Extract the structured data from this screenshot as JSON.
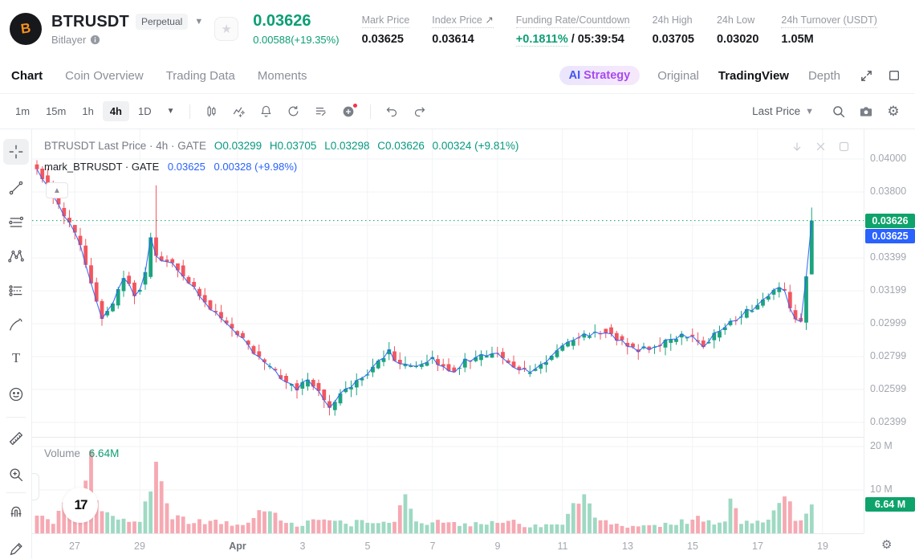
{
  "header": {
    "symbol": "BTRUSDT",
    "contract_badge": "Perpetual",
    "network": "Bitlayer",
    "price": "0.03626",
    "change": "0.00588(+19.35%)",
    "stats": [
      {
        "label": "Mark Price",
        "value": "0.03625"
      },
      {
        "label": "Index Price",
        "value": "0.03614"
      },
      {
        "label": "Funding Rate/Countdown",
        "rate": "+0.1811%",
        "countdown": " / 05:39:54"
      },
      {
        "label": "24h High",
        "value": "0.03705"
      },
      {
        "label": "24h Low",
        "value": "0.03020"
      },
      {
        "label": "24h Turnover (USDT)",
        "value": "1.05M"
      }
    ]
  },
  "nav": {
    "tabs": [
      "Chart",
      "Coin Overview",
      "Trading Data",
      "Moments"
    ],
    "active_tab": "Chart",
    "ai_badge": {
      "prefix": "AI",
      "label": "Strategy"
    },
    "views": [
      "Original",
      "TradingView",
      "Depth"
    ],
    "active_view": "TradingView"
  },
  "toolbar": {
    "timeframes": [
      "1m",
      "15m",
      "1h",
      "4h",
      "1D"
    ],
    "active_timeframe": "4h",
    "price_mode": "Last Price"
  },
  "legend": {
    "main_title": "BTRUSDT Last Price · 4h · GATE",
    "o": "O0.03299",
    "h": "H0.03705",
    "l": "L0.03298",
    "c": "C0.03626",
    "change": "0.00324 (+9.81%)",
    "mark_title": "mark_BTRUSDT · GATE",
    "mark_price": "0.03625",
    "mark_change": "0.00328 (+9.98%)",
    "volume_label": "Volume",
    "volume_value": "6.64M"
  },
  "axis_badges": {
    "last_price": "0.03626",
    "mark_price": "0.03625",
    "volume": "6.64 M"
  },
  "chart_data": {
    "type": "candlestick",
    "title": "BTRUSDT Last Price 4h GATE",
    "interval": "4h",
    "legend_position": "top-left",
    "grid": true,
    "last_candle": {
      "o": 0.03299,
      "h": 0.03705,
      "l": 0.03298,
      "c": 0.03626
    },
    "last_price": 0.03626,
    "mark_price": 0.03625,
    "last_volume_m": 6.64,
    "price_axis_range": [
      0.0222,
      0.0418
    ],
    "price_ticks": [
      {
        "label": "0.04000",
        "value": 0.04
      },
      {
        "label": "0.03800",
        "value": 0.038
      },
      {
        "label": "0.03399",
        "value": 0.03399
      },
      {
        "label": "0.03199",
        "value": 0.03199
      },
      {
        "label": "0.02999",
        "value": 0.02999
      },
      {
        "label": "0.02799",
        "value": 0.02799
      },
      {
        "label": "0.02599",
        "value": 0.02599
      },
      {
        "label": "0.02399",
        "value": 0.02399
      }
    ],
    "grid_prices": [
      0.04,
      0.038,
      0.03599,
      0.03399,
      0.03199,
      0.02999,
      0.02799,
      0.02599,
      0.02399
    ],
    "volume_ticks": [
      {
        "label": "20 M",
        "value": 20
      },
      {
        "label": "10 M",
        "value": 10
      }
    ],
    "x_ticks": [
      {
        "label": "27",
        "idx": 7
      },
      {
        "label": "29",
        "idx": 19
      },
      {
        "label": "Apr",
        "idx": 37,
        "bold": true
      },
      {
        "label": "3",
        "idx": 49
      },
      {
        "label": "5",
        "idx": 61
      },
      {
        "label": "7",
        "idx": 73
      },
      {
        "label": "9",
        "idx": 85
      },
      {
        "label": "11",
        "idx": 97
      },
      {
        "label": "13",
        "idx": 109
      },
      {
        "label": "15",
        "idx": 121
      },
      {
        "label": "17",
        "idx": 133
      },
      {
        "label": "19",
        "idx": 145
      }
    ],
    "candle_count": 144,
    "price_waypoints": [
      [
        0,
        0.0398
      ],
      [
        1,
        0.0394
      ],
      [
        2,
        0.0389
      ],
      [
        3,
        0.0383
      ],
      [
        4,
        0.0378
      ],
      [
        5,
        0.0372
      ],
      [
        6,
        0.0366
      ],
      [
        8,
        0.0355
      ],
      [
        9,
        0.0347
      ],
      [
        10,
        0.0336
      ],
      [
        11,
        0.0324
      ],
      [
        12,
        0.0312
      ],
      [
        13,
        0.0304
      ],
      [
        14,
        0.0307
      ],
      [
        15,
        0.0312
      ],
      [
        16,
        0.0321
      ],
      [
        17,
        0.0329
      ],
      [
        18,
        0.0324
      ],
      [
        19,
        0.0318
      ],
      [
        20,
        0.0322
      ],
      [
        21,
        0.033
      ],
      [
        22,
        0.0352
      ],
      [
        23,
        0.0341
      ],
      [
        25,
        0.0338
      ],
      [
        27,
        0.0334
      ],
      [
        29,
        0.0326
      ],
      [
        31,
        0.0316
      ],
      [
        33,
        0.0309
      ],
      [
        35,
        0.0303
      ],
      [
        37,
        0.0297
      ],
      [
        39,
        0.029
      ],
      [
        41,
        0.0282
      ],
      [
        43,
        0.0275
      ],
      [
        45,
        0.027
      ],
      [
        47,
        0.0264
      ],
      [
        49,
        0.0261
      ],
      [
        51,
        0.0266
      ],
      [
        53,
        0.0259
      ],
      [
        54,
        0.0253
      ],
      [
        55,
        0.0248
      ],
      [
        56,
        0.0252
      ],
      [
        57,
        0.0257
      ],
      [
        59,
        0.0262
      ],
      [
        61,
        0.0267
      ],
      [
        63,
        0.0272
      ],
      [
        65,
        0.028
      ],
      [
        66,
        0.0284
      ],
      [
        67,
        0.0279
      ],
      [
        68,
        0.0275
      ],
      [
        70,
        0.0273
      ],
      [
        72,
        0.0276
      ],
      [
        74,
        0.0279
      ],
      [
        76,
        0.0274
      ],
      [
        78,
        0.0272
      ],
      [
        80,
        0.0277
      ],
      [
        82,
        0.0279
      ],
      [
        84,
        0.0281
      ],
      [
        86,
        0.0282
      ],
      [
        88,
        0.0276
      ],
      [
        90,
        0.0272
      ],
      [
        92,
        0.027
      ],
      [
        94,
        0.0274
      ],
      [
        96,
        0.028
      ],
      [
        98,
        0.0286
      ],
      [
        100,
        0.029
      ],
      [
        102,
        0.0293
      ],
      [
        104,
        0.0295
      ],
      [
        106,
        0.0296
      ],
      [
        108,
        0.0291
      ],
      [
        110,
        0.0287
      ],
      [
        112,
        0.0284
      ],
      [
        114,
        0.0285
      ],
      [
        116,
        0.0287
      ],
      [
        118,
        0.029
      ],
      [
        120,
        0.0292
      ],
      [
        122,
        0.0291
      ],
      [
        124,
        0.0287
      ],
      [
        126,
        0.0293
      ],
      [
        128,
        0.0299
      ],
      [
        130,
        0.0303
      ],
      [
        132,
        0.0307
      ],
      [
        134,
        0.0311
      ],
      [
        136,
        0.0317
      ],
      [
        138,
        0.0322
      ],
      [
        139,
        0.032
      ],
      [
        140,
        0.0308
      ],
      [
        141,
        0.0303
      ],
      [
        142,
        0.0302
      ],
      [
        143,
        0.033
      ],
      [
        144,
        0.03626
      ]
    ],
    "volume_waypoints_m": [
      [
        0,
        3.5
      ],
      [
        3,
        2.5
      ],
      [
        5,
        8
      ],
      [
        7,
        3
      ],
      [
        10,
        19
      ],
      [
        11,
        6
      ],
      [
        13,
        4
      ],
      [
        16,
        3
      ],
      [
        19,
        2.5
      ],
      [
        22,
        16.5
      ],
      [
        23,
        12
      ],
      [
        25,
        4
      ],
      [
        28,
        3
      ],
      [
        31,
        2.5
      ],
      [
        34,
        2.8
      ],
      [
        37,
        2
      ],
      [
        40,
        4
      ],
      [
        42,
        5.5
      ],
      [
        45,
        3
      ],
      [
        48,
        2.2
      ],
      [
        51,
        2.5
      ],
      [
        54,
        3.2
      ],
      [
        57,
        2.2
      ],
      [
        60,
        2.5
      ],
      [
        63,
        2.2
      ],
      [
        66,
        3
      ],
      [
        68,
        9
      ],
      [
        70,
        3
      ],
      [
        73,
        2.2
      ],
      [
        76,
        2.8
      ],
      [
        79,
        1.8
      ],
      [
        82,
        2.2
      ],
      [
        85,
        3.2
      ],
      [
        88,
        2.5
      ],
      [
        91,
        1.6
      ],
      [
        94,
        1.8
      ],
      [
        97,
        2.2
      ],
      [
        101,
        9
      ],
      [
        103,
        3
      ],
      [
        106,
        2.2
      ],
      [
        109,
        1.5
      ],
      [
        112,
        1.8
      ],
      [
        115,
        2
      ],
      [
        118,
        2.2
      ],
      [
        121,
        3.5
      ],
      [
        124,
        2.5
      ],
      [
        127,
        2.2
      ],
      [
        128,
        8
      ],
      [
        130,
        2.5
      ],
      [
        133,
        3
      ],
      [
        135,
        4
      ],
      [
        137,
        7
      ],
      [
        138,
        8.5
      ],
      [
        140,
        3.5
      ],
      [
        141,
        3
      ],
      [
        142,
        5.5
      ],
      [
        143,
        6.64
      ]
    ],
    "special_candles": {
      "22": {
        "h": 0.0384
      },
      "55": {
        "l": 0.0244
      },
      "143": {
        "o": 0.03299,
        "h": 0.03705,
        "l": 0.03298,
        "c": 0.03626
      }
    },
    "special_volumes_m": {
      "10": 19,
      "22": 16.5,
      "23": 12,
      "68": 9,
      "101": 9,
      "128": 8,
      "137": 7,
      "138": 8.5,
      "143": 6.64
    },
    "colors": {
      "up": "#1ca47e",
      "down": "#f2565f",
      "vol_up": "#9fd9c3",
      "vol_down": "#f6a9b2",
      "mark_line": "#2962ff",
      "last_price_line": "#0fa36c",
      "badge_last": "#0fa36c",
      "badge_mark": "#2962ff",
      "badge_volume": "#0fa36c",
      "grid": "#f2f3f6"
    }
  }
}
